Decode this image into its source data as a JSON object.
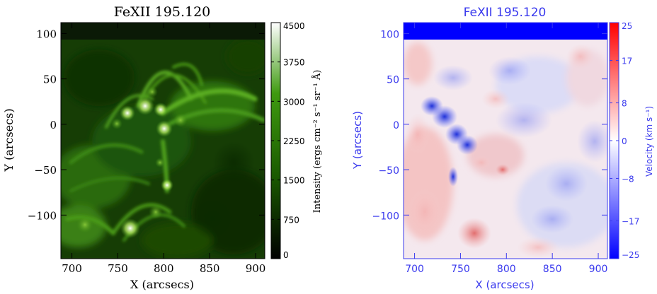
{
  "chart_data": [
    {
      "type": "heatmap",
      "title": "FeXII 195.120",
      "xlabel": "X (arcsecs)",
      "ylabel": "Y (arcsecs)",
      "xlim": [
        688,
        910
      ],
      "ylim": [
        -148,
        112
      ],
      "xticks": [
        700,
        750,
        800,
        850,
        900
      ],
      "yticks": [
        100,
        50,
        0,
        -50,
        -100
      ],
      "colorbar": {
        "label": "Intensity (ergs cm⁻² s⁻¹ sr⁻¹ Å)",
        "ticks": [
          4500,
          3750,
          3000,
          2250,
          1500,
          750,
          0
        ],
        "range": [
          0,
          4500
        ],
        "colors": [
          "#000000",
          "#1a5a00",
          "#3f9a10",
          "#ffffff"
        ]
      },
      "features": [
        {
          "x": 790,
          "y": 10,
          "intensity": 4200
        },
        {
          "x": 765,
          "y": 10,
          "intensity": 3800
        },
        {
          "x": 800,
          "y": -5,
          "intensity": 3600
        },
        {
          "x": 760,
          "y": -118,
          "intensity": 4300
        },
        {
          "x": 800,
          "y": -70,
          "intensity": 3000
        }
      ]
    },
    {
      "type": "heatmap",
      "title": "FeXII 195.120",
      "xlabel": "X (arcsecs)",
      "ylabel": "Y (arcsecs)",
      "xlim": [
        688,
        910
      ],
      "ylim": [
        -148,
        112
      ],
      "xticks": [
        700,
        750,
        800,
        850,
        900
      ],
      "yticks": [
        100,
        50,
        0,
        -50,
        -100
      ],
      "colorbar": {
        "label": "Velocity (km s⁻¹)",
        "ticks": [
          25,
          17,
          8,
          0,
          -8,
          -17,
          -25
        ],
        "range": [
          -25,
          25
        ],
        "colors": [
          "#0000ff",
          "#ffffff",
          "#ff0000"
        ]
      },
      "features": [
        {
          "x": 720,
          "y": 15,
          "velocity": -22
        },
        {
          "x": 745,
          "y": -25,
          "velocity": -20
        },
        {
          "x": 740,
          "y": -62,
          "velocity": -24
        },
        {
          "x": 765,
          "y": -125,
          "velocity": 15
        },
        {
          "x": 805,
          "y": -50,
          "velocity": 12
        },
        {
          "x": 860,
          "y": 35,
          "velocity": -9
        }
      ]
    }
  ]
}
